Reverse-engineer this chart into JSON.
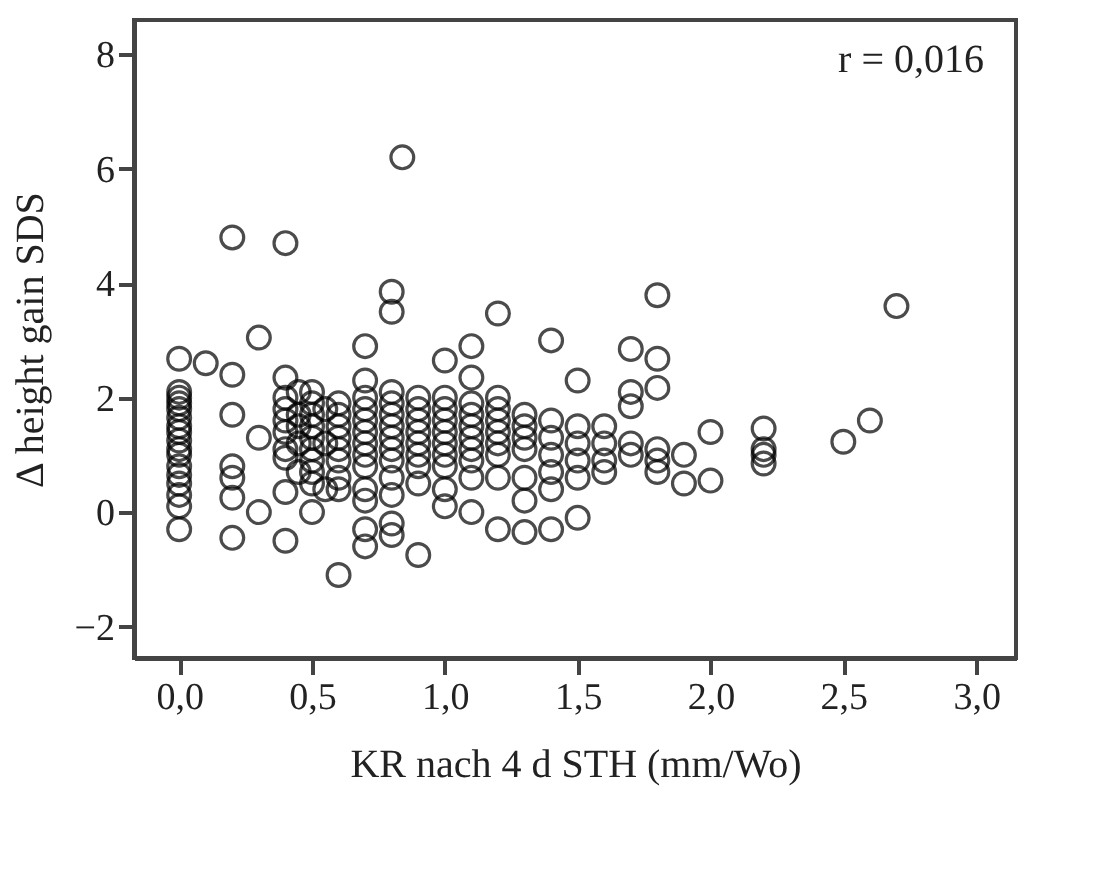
{
  "chart_data": {
    "type": "scatter",
    "xlabel": "KR nach 4 d STH (mm/Wo)",
    "ylabel": "Δ height gain SDS",
    "annotations": [
      "r = 0,016"
    ],
    "marker": "circle",
    "grid": false,
    "xlim": [
      -0.17,
      3.15
    ],
    "ylim": [
      -2.55,
      8.6
    ],
    "xticks": [
      {
        "value": 0,
        "label": "0,0"
      },
      {
        "value": 0.5,
        "label": "0,5"
      },
      {
        "value": 1,
        "label": "1,0"
      },
      {
        "value": 1.5,
        "label": "1,5"
      },
      {
        "value": 2,
        "label": "2,0"
      },
      {
        "value": 2.5,
        "label": "2,5"
      },
      {
        "value": 3,
        "label": "3,0"
      }
    ],
    "yticks": [
      -2,
      0,
      2,
      4,
      6,
      8
    ],
    "series": [
      {
        "color": "#000000",
        "x": [
          0,
          0,
          0,
          0,
          0,
          0,
          0,
          0,
          0,
          0,
          0,
          0,
          0,
          0,
          0,
          0,
          0,
          0.1,
          0.2,
          0.2,
          0.2,
          0.2,
          0.2,
          0.2,
          0.2,
          0.3,
          0.3,
          0.3,
          0.4,
          0.4,
          0.4,
          0.4,
          0.4,
          0.4,
          0.4,
          0.4,
          0.4,
          0.4,
          0.45,
          0.45,
          0.45,
          0.45,
          0.45,
          0.5,
          0.5,
          0.5,
          0.5,
          0.5,
          0.5,
          0.5,
          0.5,
          0.5,
          0.5,
          0.55,
          0.55,
          0.55,
          0.6,
          0.6,
          0.6,
          0.6,
          0.6,
          0.6,
          0.6,
          0.6,
          0.6,
          0.7,
          0.7,
          0.7,
          0.7,
          0.7,
          0.7,
          0.7,
          0.7,
          0.7,
          0.7,
          0.7,
          0.7,
          0.7,
          0.8,
          0.8,
          0.8,
          0.8,
          0.8,
          0.8,
          0.8,
          0.8,
          0.8,
          0.8,
          0.8,
          0.8,
          0.8,
          0.84,
          0.9,
          0.9,
          0.9,
          0.9,
          0.9,
          0.9,
          0.9,
          0.9,
          0.9,
          1,
          1,
          1,
          1,
          1,
          1,
          1,
          1,
          1,
          1,
          1.1,
          1.1,
          1.1,
          1.1,
          1.1,
          1.1,
          1.1,
          1.1,
          1.1,
          1.1,
          1.2,
          1.2,
          1.2,
          1.2,
          1.2,
          1.2,
          1.2,
          1.2,
          1.2,
          1.3,
          1.3,
          1.3,
          1.3,
          1.3,
          1.3,
          1.3,
          1.4,
          1.4,
          1.4,
          1.4,
          1.4,
          1.4,
          1.4,
          1.5,
          1.5,
          1.5,
          1.5,
          1.5,
          1.5,
          1.6,
          1.6,
          1.6,
          1.6,
          1.7,
          1.7,
          1.7,
          1.7,
          1.7,
          1.8,
          1.8,
          1.8,
          1.8,
          1.8,
          1.8,
          1.9,
          1.9,
          2,
          2,
          2.2,
          2.2,
          2.2,
          2.2,
          2.5,
          2.6,
          2.7
        ],
        "values": [
          2.68,
          2.1,
          2.0,
          1.9,
          1.8,
          1.65,
          1.5,
          1.4,
          1.25,
          1.1,
          1.0,
          0.8,
          0.65,
          0.5,
          0.3,
          0.1,
          -0.3,
          2.6,
          4.8,
          2.4,
          1.7,
          0.8,
          0.6,
          0.25,
          -0.45,
          3.05,
          1.3,
          0.0,
          4.7,
          2.35,
          2.0,
          1.8,
          1.6,
          1.4,
          1.1,
          0.95,
          0.35,
          -0.5,
          2.1,
          1.7,
          1.5,
          1.2,
          0.7,
          2.1,
          1.9,
          1.7,
          1.5,
          1.3,
          1.1,
          0.9,
          0.7,
          0.5,
          0.0,
          1.8,
          1.2,
          0.4,
          1.9,
          1.7,
          1.5,
          1.3,
          1.1,
          0.9,
          0.6,
          0.4,
          -1.1,
          2.9,
          2.3,
          2.0,
          1.8,
          1.6,
          1.4,
          1.2,
          1.0,
          0.8,
          0.4,
          0.2,
          -0.3,
          -0.6,
          3.85,
          3.5,
          2.1,
          1.9,
          1.7,
          1.5,
          1.3,
          1.1,
          0.9,
          0.6,
          0.3,
          -0.2,
          -0.4,
          6.2,
          2.0,
          1.8,
          1.6,
          1.4,
          1.2,
          1.0,
          0.8,
          0.5,
          -0.75,
          2.65,
          2.0,
          1.8,
          1.6,
          1.4,
          1.2,
          1.0,
          0.8,
          0.4,
          0.1,
          2.9,
          2.35,
          1.9,
          1.7,
          1.5,
          1.3,
          1.1,
          0.9,
          0.6,
          0.0,
          3.47,
          2.0,
          1.8,
          1.6,
          1.4,
          1.2,
          1.0,
          0.6,
          -0.3,
          1.7,
          1.5,
          1.3,
          1.1,
          0.6,
          0.2,
          -0.35,
          3.0,
          1.6,
          1.3,
          1.0,
          0.7,
          0.4,
          -0.3,
          2.3,
          1.5,
          1.2,
          0.9,
          0.6,
          -0.1,
          1.5,
          1.2,
          0.9,
          0.7,
          2.85,
          2.1,
          1.85,
          1.2,
          1.0,
          3.79,
          2.68,
          2.17,
          1.1,
          0.9,
          0.7,
          1.0,
          0.5,
          1.4,
          0.55,
          1.46,
          1.1,
          1.0,
          0.85,
          1.23,
          1.6,
          3.6
        ]
      }
    ]
  }
}
